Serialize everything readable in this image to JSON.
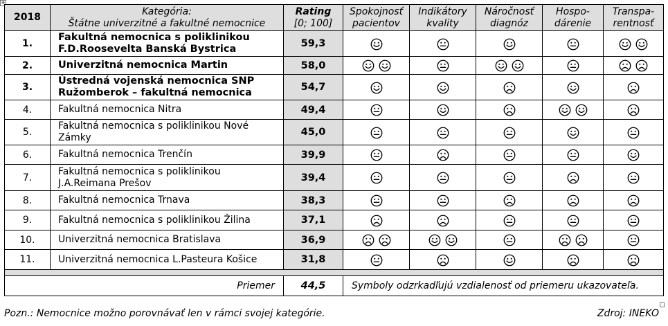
{
  "header": {
    "year": "2018",
    "category_title": "Kategória:",
    "category_sub": "Štátne univerzitné a fakultné nemocnice",
    "rating_title": "Rating",
    "rating_scale": "[0; 100]",
    "criteria": [
      [
        "Spokojnosť",
        "pacientov"
      ],
      [
        "Indikátory",
        "kvality"
      ],
      [
        "Náročnosť",
        "diagnóz"
      ],
      [
        "Hospo-",
        "dárenie"
      ],
      [
        "Transpa-",
        "rentnosť"
      ]
    ]
  },
  "rows": [
    {
      "rank": "1.",
      "name": [
        "Fakultná nemocnica s poliklinikou",
        "F.D.Roosevelta Banská Bystrica"
      ],
      "rating": "59,3",
      "bold": true,
      "symbols": [
        [
          "smile"
        ],
        [
          "neutral"
        ],
        [
          "smile"
        ],
        [
          "neutral"
        ],
        [
          "smile",
          "smile"
        ]
      ]
    },
    {
      "rank": "2.",
      "name": [
        "Univerzitná nemocnica Martin"
      ],
      "rating": "58,0",
      "bold": true,
      "symbols": [
        [
          "smile",
          "smile"
        ],
        [
          "neutral"
        ],
        [
          "smile",
          "smile"
        ],
        [
          "neutral"
        ],
        [
          "frown",
          "frown"
        ]
      ]
    },
    {
      "rank": "3.",
      "name": [
        "Ústredná vojenská nemocnica SNP",
        "Ružomberok – fakultná nemocnica"
      ],
      "rating": "54,7",
      "bold": true,
      "symbols": [
        [
          "smile"
        ],
        [
          "smile"
        ],
        [
          "frown"
        ],
        [
          "smile"
        ],
        [
          "frown"
        ]
      ]
    },
    {
      "rank": "4.",
      "name": [
        "Fakultná nemocnica Nitra"
      ],
      "rating": "49,4",
      "bold": false,
      "symbols": [
        [
          "neutral"
        ],
        [
          "smile"
        ],
        [
          "frown"
        ],
        [
          "smile",
          "smile"
        ],
        [
          "frown"
        ]
      ]
    },
    {
      "rank": "5.",
      "name": [
        "Fakultná nemocnica s poliklinikou Nové",
        "Zámky"
      ],
      "rating": "45,0",
      "bold": false,
      "symbols": [
        [
          "neutral"
        ],
        [
          "neutral"
        ],
        [
          "neutral"
        ],
        [
          "smile"
        ],
        [
          "neutral"
        ]
      ]
    },
    {
      "rank": "6.",
      "name": [
        "Fakultná nemocnica Trenčín"
      ],
      "rating": "39,9",
      "bold": false,
      "symbols": [
        [
          "neutral"
        ],
        [
          "frown"
        ],
        [
          "neutral"
        ],
        [
          "neutral"
        ],
        [
          "smile"
        ]
      ]
    },
    {
      "rank": "7.",
      "name": [
        "Fakultná nemocnica s poliklinikou",
        "J.A.Reimana Prešov"
      ],
      "rating": "39,4",
      "bold": false,
      "symbols": [
        [
          "neutral"
        ],
        [
          "neutral"
        ],
        [
          "neutral"
        ],
        [
          "frown"
        ],
        [
          "neutral"
        ]
      ]
    },
    {
      "rank": "8.",
      "name": [
        "Fakultná nemocnica Trnava"
      ],
      "rating": "38,3",
      "bold": false,
      "symbols": [
        [
          "neutral"
        ],
        [
          "neutral"
        ],
        [
          "frown"
        ],
        [
          "frown"
        ],
        [
          "frown"
        ]
      ]
    },
    {
      "rank": "9.",
      "name": [
        "Fakultná nemocnica s poliklinikou Žilina"
      ],
      "rating": "37,1",
      "bold": false,
      "symbols": [
        [
          "frown"
        ],
        [
          "frown"
        ],
        [
          "neutral"
        ],
        [
          "neutral"
        ],
        [
          "neutral"
        ]
      ]
    },
    {
      "rank": "10.",
      "name": [
        "Univerzitná  nemocnica Bratislava"
      ],
      "rating": "36,9",
      "bold": false,
      "symbols": [
        [
          "frown",
          "frown"
        ],
        [
          "smile",
          "smile"
        ],
        [
          "neutral"
        ],
        [
          "frown",
          "frown"
        ],
        [
          "neutral"
        ]
      ]
    },
    {
      "rank": "11.",
      "name": [
        "Univerzitná nemocnica L.Pasteura Košice"
      ],
      "rating": "31,8",
      "bold": false,
      "symbols": [
        [
          "neutral"
        ],
        [
          "frown"
        ],
        [
          "smile"
        ],
        [
          "frown"
        ],
        [
          "frown"
        ]
      ]
    }
  ],
  "footer": {
    "average_label": "Priemer",
    "average_value": "44,5",
    "legend": "Symboly odzrkadľujú vzdialenosť od priemeru ukazovateľa."
  },
  "notes": {
    "left": "Pozn.: Nemocnice možno porovnávať len v rámci svojej kategórie.",
    "source": "Zdroj: INEKO"
  },
  "colors": {
    "header_fill": "#dedede",
    "rating_fill": "#dedede",
    "grid": "#000000"
  },
  "icons": {
    "smile": "smiley-face-icon",
    "neutral": "neutral-face-icon",
    "frown": "frowning-face-icon"
  }
}
